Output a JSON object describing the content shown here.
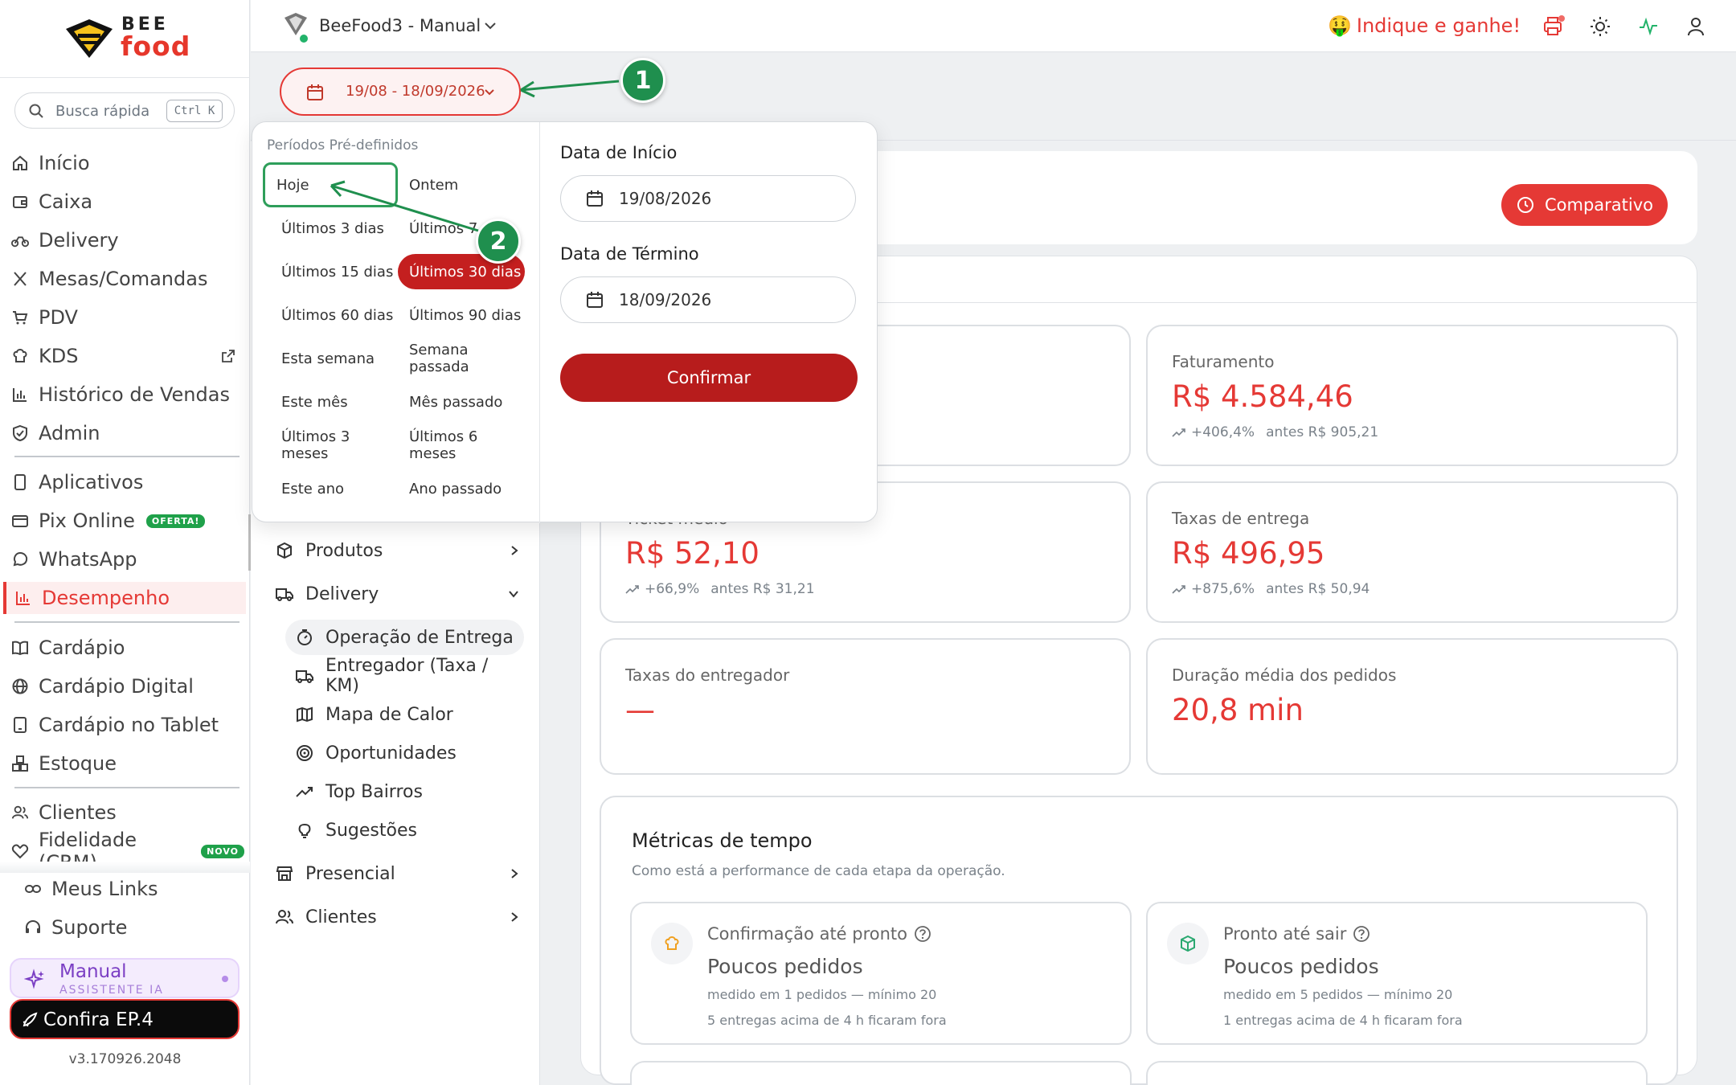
{
  "brand": {
    "line1": "BEE",
    "line2": "food"
  },
  "search": {
    "placeholder": "Busca rápida",
    "shortcut": "Ctrl K"
  },
  "sidebar": {
    "items": [
      {
        "label": "Início",
        "icon": "home-icon"
      },
      {
        "label": "Caixa",
        "icon": "wallet-icon"
      },
      {
        "label": "Delivery",
        "icon": "bike-icon"
      },
      {
        "label": "Mesas/Comandas",
        "icon": "utensils-icon"
      },
      {
        "label": "PDV",
        "icon": "cart-icon"
      },
      {
        "label": "KDS",
        "icon": "chef-hat-icon"
      },
      {
        "label": "Histórico de Vendas",
        "icon": "bar-chart-icon"
      },
      {
        "label": "Admin",
        "icon": "shield-icon"
      },
      {
        "label": "Aplicativos",
        "icon": "smartphone-icon"
      },
      {
        "label": "Pix Online",
        "icon": "card-icon",
        "badge": "OFERTA!"
      },
      {
        "label": "WhatsApp",
        "icon": "chat-icon"
      },
      {
        "label": "Desempenho",
        "icon": "bar-chart-icon"
      },
      {
        "label": "Cardápio",
        "icon": "book-icon"
      },
      {
        "label": "Cardápio Digital",
        "icon": "globe-icon"
      },
      {
        "label": "Cardápio no Tablet",
        "icon": "tablet-icon"
      },
      {
        "label": "Estoque",
        "icon": "boxes-icon"
      },
      {
        "label": "Clientes",
        "icon": "users-icon"
      },
      {
        "label": "Fidelidade (CRM)",
        "icon": "heart-icon",
        "badge": "NOVO"
      },
      {
        "label": "Meus Links",
        "icon": "link-icon"
      },
      {
        "label": "Suporte",
        "icon": "headset-icon"
      }
    ],
    "manual": {
      "title": "Manual",
      "subtitle": "ASSISTENTE IA"
    },
    "confira": "Confira EP.4",
    "version": "v3.170926.2048"
  },
  "topbar": {
    "store": "BeeFood3 - Manual",
    "referral": "Indique e ganhe!",
    "referral_emoji": "🤑"
  },
  "date_range": {
    "label": "19/08 - 18/09/2026"
  },
  "submenu": {
    "produtos": "Produtos",
    "delivery": "Delivery",
    "delivery_items": [
      "Operação de Entrega",
      "Entregador (Taxa / KM)",
      "Mapa de Calor",
      "Oportunidades",
      "Top Bairros",
      "Sugestões"
    ],
    "presencial": "Presencial",
    "clientes": "Clientes"
  },
  "dropdown": {
    "heading": "Períodos Pré-definidos",
    "presets": [
      "Hoje",
      "Ontem",
      "Últimos 3 dias",
      "Últimos 7 dias",
      "Últimos 15 dias",
      "Últimos 30 dias",
      "Últimos 60 dias",
      "Últimos 90 dias",
      "Esta semana",
      "Semana passada",
      "Este mês",
      "Mês passado",
      "Últimos 3 meses",
      "Últimos 6 meses",
      "Este ano",
      "Ano passado"
    ],
    "selected": "Últimos 30 dias",
    "start_label": "Data de Início",
    "start_value": "19/08/2026",
    "end_label": "Data de Término",
    "end_value": "18/09/2026",
    "confirm": "Confirmar"
  },
  "comparativo": "Comparativo",
  "kpis": {
    "faturamento": {
      "title": "Faturamento",
      "value": "R$ 4.584,46",
      "delta": "+406,4%",
      "before": "antes R$ 905,21"
    },
    "ticket": {
      "title": "Ticket médio",
      "value": "R$ 52,10",
      "delta": "+66,9%",
      "before": "antes R$ 31,21"
    },
    "taxas_entrega": {
      "title": "Taxas de entrega",
      "value": "R$ 496,95",
      "delta": "+875,6%",
      "before": "antes R$ 50,94"
    },
    "taxas_entregador": {
      "title": "Taxas do entregador",
      "value": "—"
    },
    "duracao": {
      "title": "Duração média dos pedidos",
      "value": "20,8 min"
    }
  },
  "metrics": {
    "title": "Métricas de tempo",
    "subtitle": "Como está a performance de cada etapa da operação.",
    "cards": [
      {
        "title": "Confirmação até pronto",
        "value": "Poucos pedidos",
        "line1": "medido em 1 pedidos — mínimo 20",
        "line2": "5 entregas acima de 4 h ficaram fora"
      },
      {
        "title": "Pronto até sair",
        "value": "Poucos pedidos",
        "line1": "medido em 5 pedidos — mínimo 20",
        "line2": "1 entregas acima de 4 h ficaram fora"
      }
    ]
  },
  "annotations": {
    "marker1": "1",
    "marker2": "2"
  },
  "colors": {
    "accent": "#e53935",
    "confirm": "#b71c1c",
    "annotation": "#1f8f4e"
  }
}
